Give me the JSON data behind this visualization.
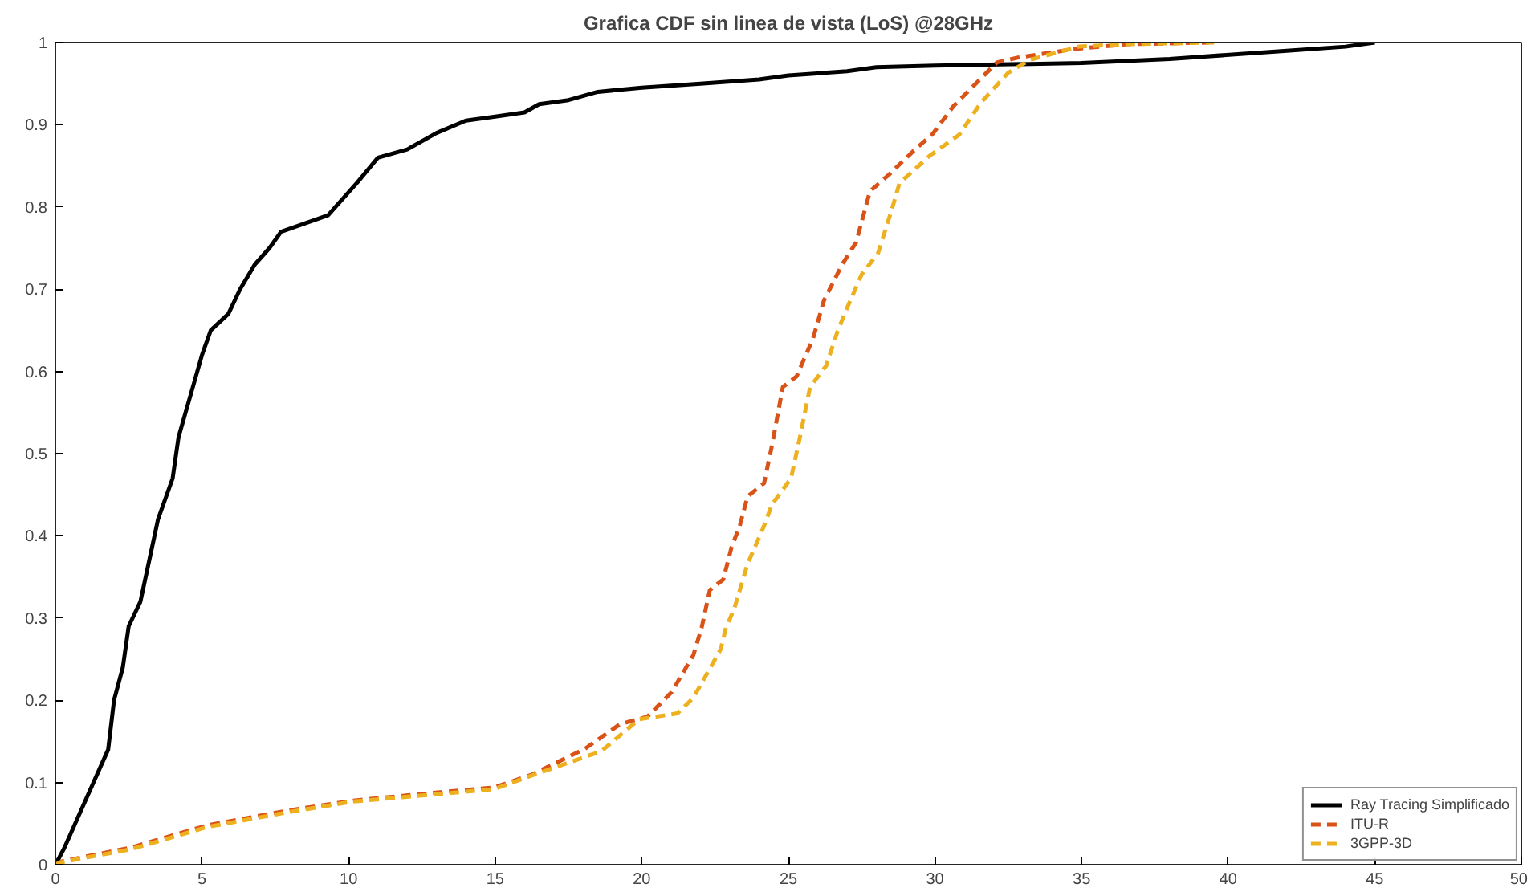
{
  "chart_data": {
    "type": "line",
    "title": "Grafica CDF sin linea de vista (LoS) @28GHz",
    "xlim": [
      0,
      50
    ],
    "ylim": [
      0,
      1
    ],
    "xticks": [
      0,
      5,
      10,
      15,
      20,
      25,
      30,
      35,
      40,
      45,
      50
    ],
    "yticks": [
      0,
      0.1,
      0.2,
      0.3,
      0.4,
      0.5,
      0.6,
      0.7,
      0.8,
      0.9,
      1
    ],
    "grid": false,
    "legend": "bottom right",
    "series": [
      {
        "name": "Ray Tracing Simplificado",
        "color": "#000000",
        "line_style": "solid",
        "x": [
          0,
          0.3,
          0.8,
          1.3,
          1.8,
          2,
          2.3,
          2.5,
          2.9,
          3.2,
          3.5,
          4,
          4.2,
          4.6,
          5,
          5.3,
          5.9,
          6.3,
          6.8,
          7.3,
          7.7,
          8.5,
          9.3,
          9.8,
          10.3,
          11,
          12,
          13,
          14,
          15,
          16,
          16.5,
          17.5,
          18.5,
          20,
          22,
          24,
          25,
          27,
          28,
          30,
          35,
          38,
          42,
          44,
          45
        ],
        "values": [
          0,
          0.02,
          0.06,
          0.1,
          0.14,
          0.2,
          0.24,
          0.29,
          0.32,
          0.37,
          0.42,
          0.47,
          0.52,
          0.57,
          0.62,
          0.65,
          0.67,
          0.7,
          0.73,
          0.75,
          0.77,
          0.78,
          0.79,
          0.81,
          0.83,
          0.86,
          0.87,
          0.89,
          0.905,
          0.91,
          0.915,
          0.925,
          0.93,
          0.94,
          0.945,
          0.95,
          0.955,
          0.96,
          0.965,
          0.97,
          0.972,
          0.975,
          0.98,
          0.99,
          0.995,
          1
        ]
      },
      {
        "name": "ITU-R",
        "color": "#d95319",
        "line_style": "dashed",
        "x": [
          0,
          0.21,
          2.6,
          5.19,
          7.96,
          10.17,
          12.76,
          14.97,
          16.21,
          18.06,
          19.26,
          20.19,
          21.02,
          21.76,
          22.04,
          22.32,
          22.78,
          23.06,
          23.34,
          23.61,
          24.17,
          24.44,
          24.81,
          25.28,
          25.84,
          26.21,
          26.85,
          27.31,
          27.78,
          28.42,
          29.35,
          29.9,
          30.64,
          31.39,
          32.12,
          32.87,
          34.72,
          36.57,
          39.34
        ],
        "values": [
          0,
          0.004,
          0.021,
          0.048,
          0.066,
          0.078,
          0.087,
          0.094,
          0.109,
          0.141,
          0.171,
          0.18,
          0.21,
          0.255,
          0.288,
          0.334,
          0.347,
          0.386,
          0.412,
          0.448,
          0.464,
          0.51,
          0.581,
          0.594,
          0.64,
          0.686,
          0.731,
          0.757,
          0.819,
          0.839,
          0.871,
          0.888,
          0.923,
          0.95,
          0.976,
          0.982,
          0.992,
          0.998,
          1
        ]
      },
      {
        "name": "3GPP-3D",
        "color": "#edb120",
        "line_style": "dashed",
        "x": [
          0,
          0.21,
          2.6,
          5.19,
          7.96,
          10.17,
          12.76,
          14.97,
          16.21,
          18.62,
          19.91,
          21.21,
          21.76,
          22.69,
          22.87,
          23.15,
          23.61,
          24.17,
          24.44,
          25.09,
          25.37,
          25.74,
          26.29,
          26.66,
          26.94,
          27.5,
          28.06,
          28.52,
          28.79,
          29.81,
          30.83,
          31.57,
          32.49,
          33.24,
          34.9,
          36.57,
          39.52
        ],
        "values": [
          0,
          0.003,
          0.019,
          0.046,
          0.064,
          0.077,
          0.085,
          0.092,
          0.108,
          0.138,
          0.177,
          0.184,
          0.203,
          0.262,
          0.288,
          0.311,
          0.366,
          0.412,
          0.438,
          0.47,
          0.516,
          0.581,
          0.607,
          0.647,
          0.672,
          0.718,
          0.744,
          0.796,
          0.829,
          0.862,
          0.888,
          0.927,
          0.963,
          0.979,
          0.995,
          0.998,
          1
        ]
      }
    ]
  }
}
